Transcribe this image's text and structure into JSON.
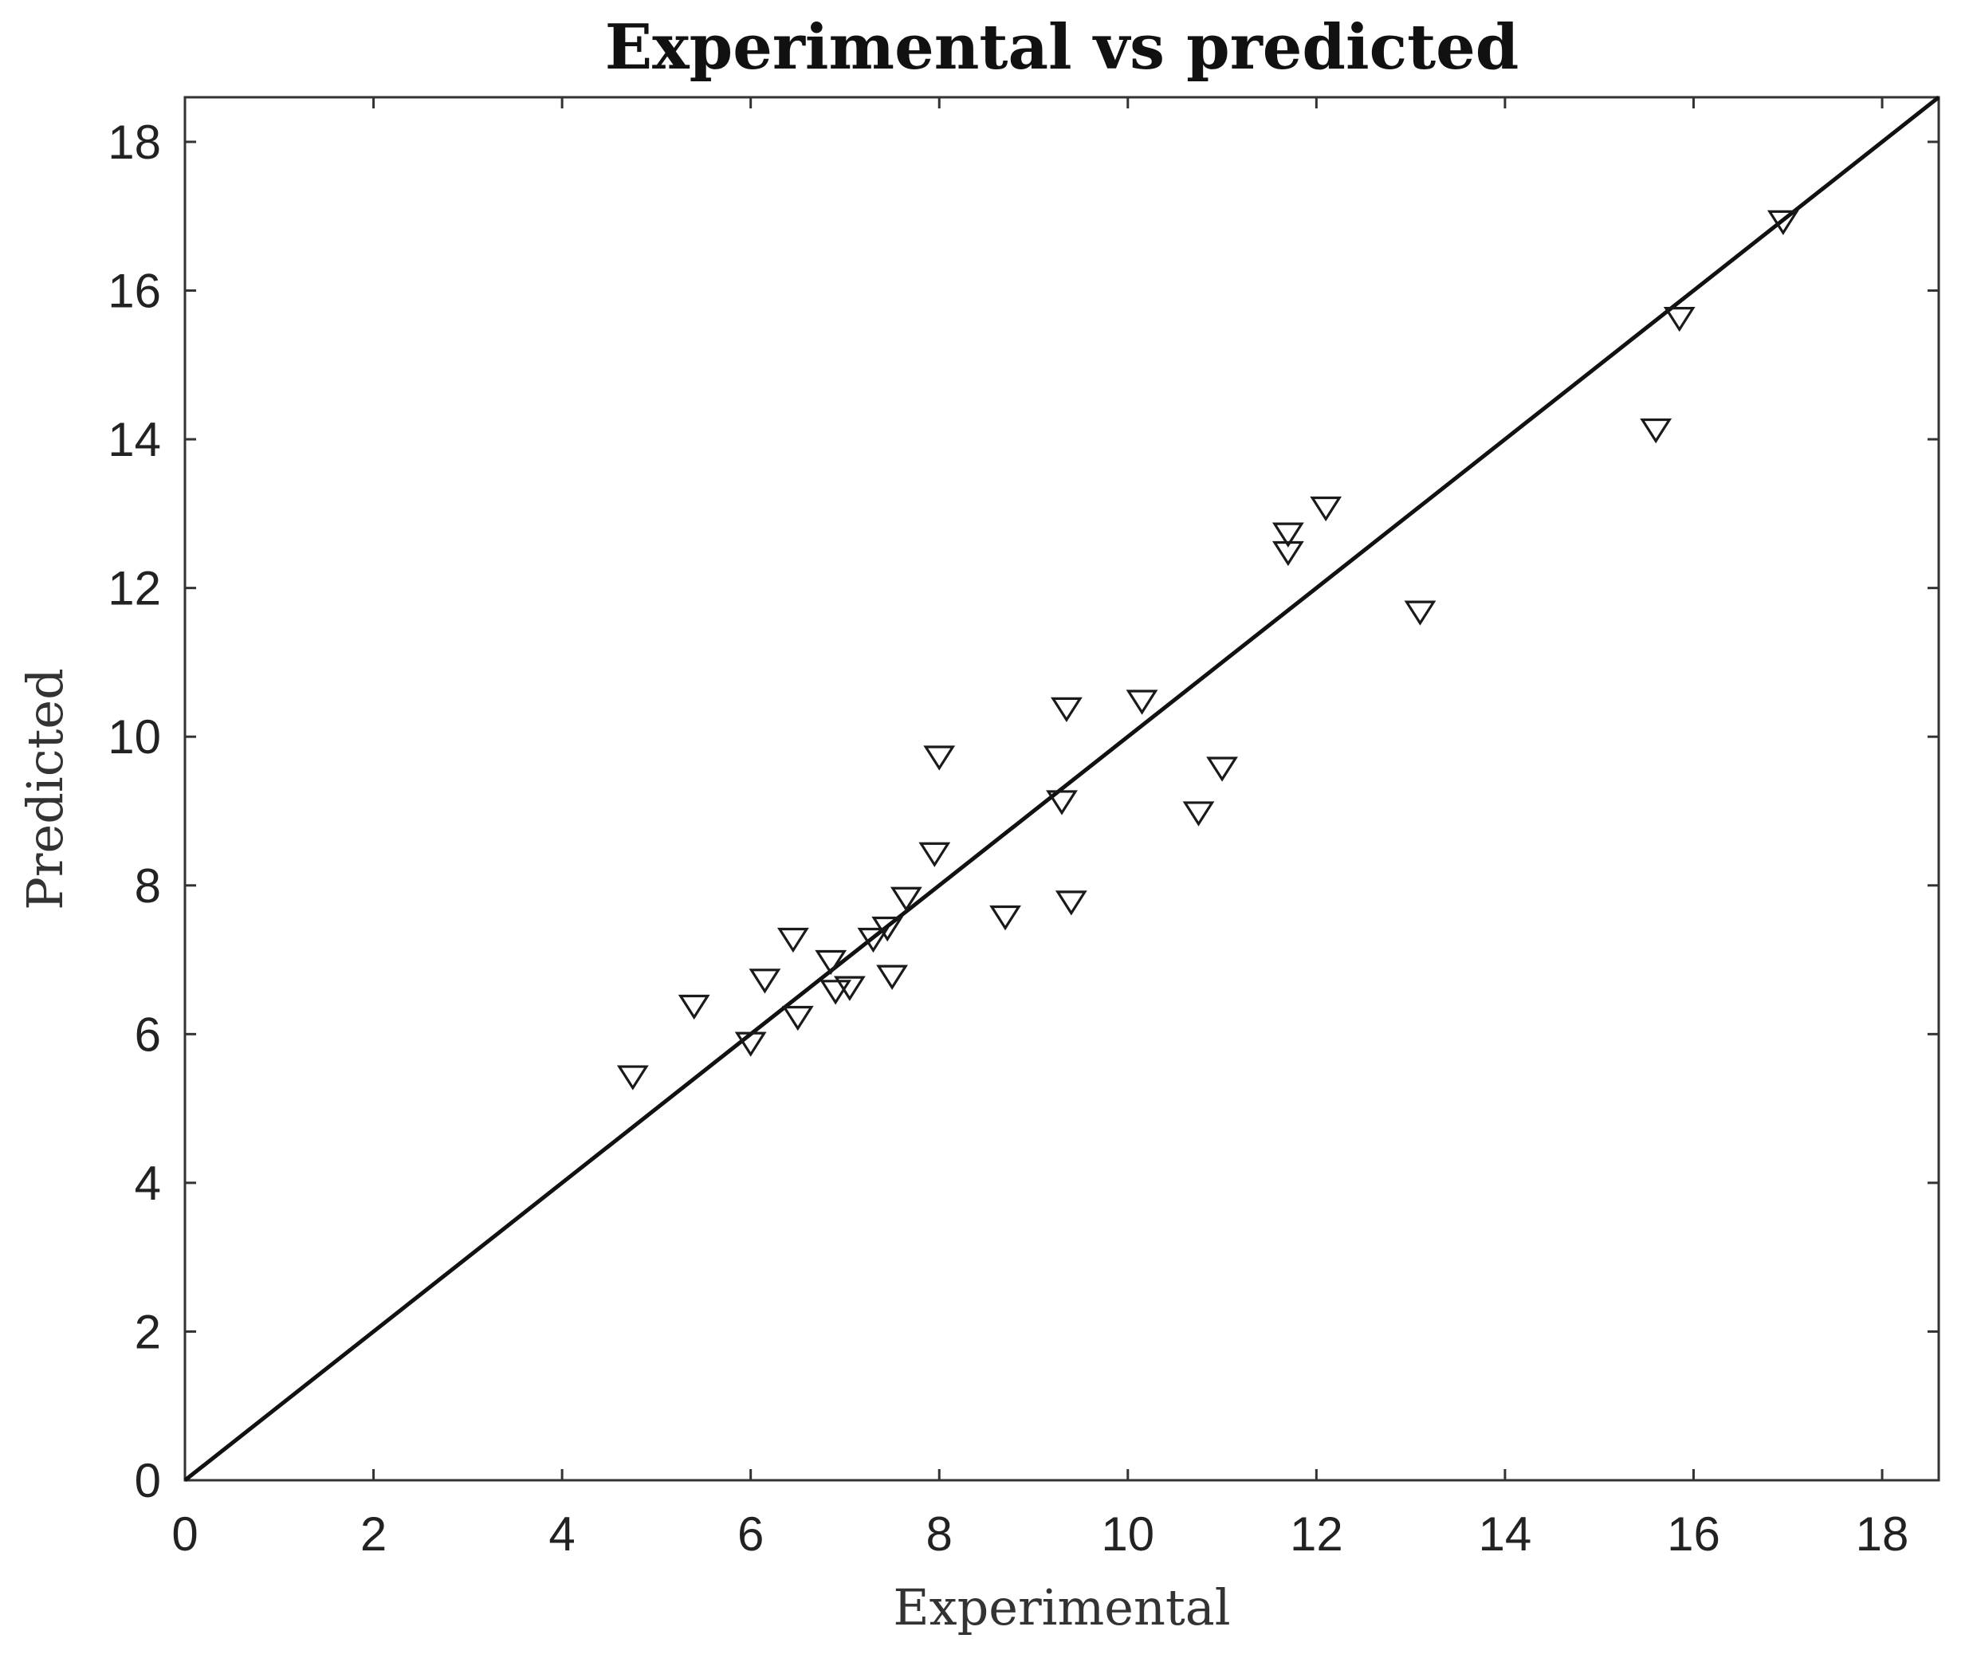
{
  "chart_data": {
    "type": "scatter",
    "title": "Experimental vs predicted",
    "xlabel": "Experimental",
    "ylabel": "Predicted",
    "xlim": [
      0,
      18.6
    ],
    "ylim": [
      0,
      18.6
    ],
    "xticks": [
      "0",
      "2",
      "4",
      "6",
      "8",
      "10",
      "12",
      "14",
      "16",
      "18"
    ],
    "yticks": [
      "0",
      "2",
      "4",
      "6",
      "8",
      "10",
      "12",
      "14",
      "16",
      "18"
    ],
    "grid": false,
    "marker": "open-downward-triangle",
    "reference_line": {
      "from": [
        0,
        0
      ],
      "to": [
        18.6,
        18.6
      ]
    },
    "colors": {
      "marker_stroke": "#1a1a1a",
      "line": "#111111",
      "axes": "#333333"
    },
    "series": [
      {
        "points": [
          [
            4.75,
            5.45
          ],
          [
            5.4,
            6.4
          ],
          [
            6.0,
            5.9
          ],
          [
            6.15,
            6.75
          ],
          [
            6.45,
            7.3
          ],
          [
            6.5,
            6.25
          ],
          [
            6.85,
            7.0
          ],
          [
            6.9,
            6.6
          ],
          [
            7.05,
            6.65
          ],
          [
            7.3,
            7.3
          ],
          [
            7.45,
            7.45
          ],
          [
            7.5,
            6.8
          ],
          [
            7.65,
            7.85
          ],
          [
            7.95,
            8.45
          ],
          [
            8.0,
            9.75
          ],
          [
            8.7,
            7.6
          ],
          [
            9.3,
            9.15
          ],
          [
            9.35,
            10.4
          ],
          [
            9.4,
            7.8
          ],
          [
            10.15,
            10.5
          ],
          [
            10.75,
            9.0
          ],
          [
            11.0,
            9.6
          ],
          [
            11.7,
            12.5
          ],
          [
            11.7,
            12.75
          ],
          [
            12.1,
            13.1
          ],
          [
            13.1,
            11.7
          ],
          [
            15.6,
            14.15
          ],
          [
            15.85,
            15.65
          ],
          [
            16.95,
            16.95
          ]
        ]
      }
    ]
  }
}
